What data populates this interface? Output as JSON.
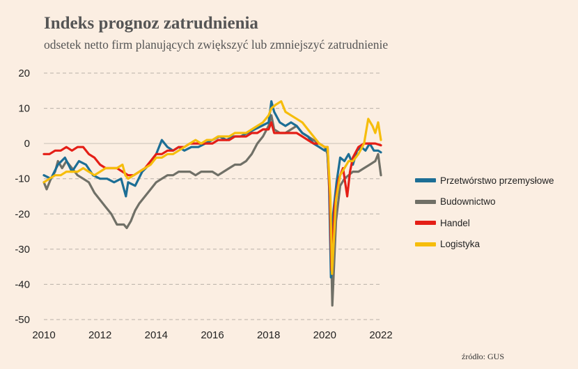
{
  "header": {
    "title": "Indeks prognoz zatrudnienia",
    "subtitle": "odsetek netto firm planujących zwiększyć lub zmniejszyć zatrudnienie"
  },
  "footer": {
    "source": "źródło: GUS"
  },
  "chart_data": {
    "type": "line",
    "title": "Indeks prognoz zatrudnienia",
    "subtitle": "odsetek netto firm planujących zwiększyć lub zmniejszyć zatrudnienie",
    "xlabel": "",
    "ylabel": "",
    "xlim": [
      2010,
      2022
    ],
    "ylim": [
      -50,
      20
    ],
    "x_ticks": [
      "2010",
      "2012",
      "2014",
      "2016",
      "2018",
      "2020",
      "2022"
    ],
    "y_ticks": [
      "20",
      "10",
      "0",
      "-10",
      "-20",
      "-30",
      "-40",
      "-50"
    ],
    "grid": "horizontal dashed",
    "legend_position": "right",
    "series": [
      {
        "name": "Przetwórstwo przemysłowe",
        "color": "#1c6e95",
        "points": [
          [
            2010.0,
            -9
          ],
          [
            2010.25,
            -10
          ],
          [
            2010.5,
            -6
          ],
          [
            2010.75,
            -4
          ],
          [
            2011.0,
            -8
          ],
          [
            2011.25,
            -5
          ],
          [
            2011.5,
            -6
          ],
          [
            2011.75,
            -9
          ],
          [
            2012.0,
            -10
          ],
          [
            2012.25,
            -10
          ],
          [
            2012.5,
            -11
          ],
          [
            2012.75,
            -10
          ],
          [
            2012.92,
            -15
          ],
          [
            2013.0,
            -11
          ],
          [
            2013.25,
            -12
          ],
          [
            2013.5,
            -8
          ],
          [
            2013.75,
            -6
          ],
          [
            2014.0,
            -3
          ],
          [
            2014.2,
            1
          ],
          [
            2014.4,
            -1
          ],
          [
            2014.6,
            -2
          ],
          [
            2014.8,
            -1
          ],
          [
            2015.0,
            -2
          ],
          [
            2015.25,
            -1
          ],
          [
            2015.5,
            -1
          ],
          [
            2015.75,
            0
          ],
          [
            2016.0,
            1
          ],
          [
            2016.25,
            2
          ],
          [
            2016.5,
            1
          ],
          [
            2016.75,
            2
          ],
          [
            2017.0,
            2
          ],
          [
            2017.25,
            3
          ],
          [
            2017.5,
            4
          ],
          [
            2017.75,
            5
          ],
          [
            2018.0,
            6
          ],
          [
            2018.1,
            12
          ],
          [
            2018.2,
            9
          ],
          [
            2018.4,
            6
          ],
          [
            2018.6,
            5
          ],
          [
            2018.8,
            6
          ],
          [
            2019.0,
            5
          ],
          [
            2019.2,
            3
          ],
          [
            2019.4,
            2
          ],
          [
            2019.6,
            0
          ],
          [
            2019.8,
            -1
          ],
          [
            2020.0,
            -2
          ],
          [
            2020.08,
            -1
          ],
          [
            2020.15,
            -10
          ],
          [
            2020.22,
            -38
          ],
          [
            2020.3,
            -20
          ],
          [
            2020.42,
            -11
          ],
          [
            2020.55,
            -4
          ],
          [
            2020.7,
            -5
          ],
          [
            2020.85,
            -3
          ],
          [
            2021.0,
            -6
          ],
          [
            2021.15,
            -2
          ],
          [
            2021.3,
            -1
          ],
          [
            2021.45,
            -2
          ],
          [
            2021.6,
            0
          ],
          [
            2021.75,
            -2
          ],
          [
            2021.9,
            -2
          ],
          [
            2022.0,
            -2.5
          ]
        ]
      },
      {
        "name": "Budownictwo",
        "color": "#707067",
        "points": [
          [
            2010.0,
            -11
          ],
          [
            2010.1,
            -13
          ],
          [
            2010.25,
            -10
          ],
          [
            2010.4,
            -8
          ],
          [
            2010.5,
            -5
          ],
          [
            2010.65,
            -7
          ],
          [
            2010.8,
            -5
          ],
          [
            2011.0,
            -7
          ],
          [
            2011.2,
            -9
          ],
          [
            2011.4,
            -10
          ],
          [
            2011.6,
            -11
          ],
          [
            2011.8,
            -14
          ],
          [
            2012.0,
            -16
          ],
          [
            2012.2,
            -18
          ],
          [
            2012.4,
            -20
          ],
          [
            2012.6,
            -23
          ],
          [
            2012.85,
            -23
          ],
          [
            2012.95,
            -24
          ],
          [
            2013.1,
            -22
          ],
          [
            2013.25,
            -19
          ],
          [
            2013.4,
            -17
          ],
          [
            2013.6,
            -15
          ],
          [
            2013.8,
            -13
          ],
          [
            2014.0,
            -11
          ],
          [
            2014.2,
            -10
          ],
          [
            2014.4,
            -9
          ],
          [
            2014.6,
            -9
          ],
          [
            2014.8,
            -8
          ],
          [
            2015.0,
            -8
          ],
          [
            2015.2,
            -8
          ],
          [
            2015.4,
            -9
          ],
          [
            2015.6,
            -8
          ],
          [
            2015.8,
            -8
          ],
          [
            2016.0,
            -8
          ],
          [
            2016.2,
            -9
          ],
          [
            2016.4,
            -8
          ],
          [
            2016.6,
            -7
          ],
          [
            2016.8,
            -6
          ],
          [
            2017.0,
            -6
          ],
          [
            2017.2,
            -5
          ],
          [
            2017.4,
            -3
          ],
          [
            2017.6,
            0
          ],
          [
            2017.8,
            2
          ],
          [
            2018.0,
            5
          ],
          [
            2018.1,
            8
          ],
          [
            2018.2,
            4
          ],
          [
            2018.4,
            3
          ],
          [
            2018.6,
            3
          ],
          [
            2018.8,
            4
          ],
          [
            2019.0,
            5
          ],
          [
            2019.2,
            3
          ],
          [
            2019.4,
            2
          ],
          [
            2019.6,
            1
          ],
          [
            2019.8,
            0
          ],
          [
            2020.0,
            -1
          ],
          [
            2020.1,
            -3
          ],
          [
            2020.2,
            -20
          ],
          [
            2020.27,
            -46
          ],
          [
            2020.4,
            -22
          ],
          [
            2020.55,
            -12
          ],
          [
            2020.7,
            -10
          ],
          [
            2020.85,
            -9
          ],
          [
            2021.0,
            -8
          ],
          [
            2021.2,
            -8
          ],
          [
            2021.4,
            -7
          ],
          [
            2021.6,
            -6
          ],
          [
            2021.8,
            -5
          ],
          [
            2021.9,
            -3
          ],
          [
            2022.0,
            -9
          ]
        ]
      },
      {
        "name": "Handel",
        "color": "#e41e16",
        "points": [
          [
            2010.0,
            -3
          ],
          [
            2010.2,
            -3
          ],
          [
            2010.4,
            -2
          ],
          [
            2010.6,
            -2
          ],
          [
            2010.8,
            -1
          ],
          [
            2011.0,
            -2
          ],
          [
            2011.2,
            -1
          ],
          [
            2011.4,
            -1
          ],
          [
            2011.6,
            -3
          ],
          [
            2011.8,
            -4
          ],
          [
            2012.0,
            -6
          ],
          [
            2012.2,
            -7
          ],
          [
            2012.4,
            -7
          ],
          [
            2012.6,
            -7
          ],
          [
            2012.8,
            -8
          ],
          [
            2013.0,
            -9
          ],
          [
            2013.2,
            -9
          ],
          [
            2013.4,
            -8
          ],
          [
            2013.6,
            -7
          ],
          [
            2013.8,
            -5
          ],
          [
            2014.0,
            -3
          ],
          [
            2014.2,
            -3
          ],
          [
            2014.4,
            -2
          ],
          [
            2014.6,
            -2
          ],
          [
            2014.8,
            -1
          ],
          [
            2015.0,
            -1
          ],
          [
            2015.2,
            0
          ],
          [
            2015.4,
            0
          ],
          [
            2015.6,
            0
          ],
          [
            2015.8,
            0
          ],
          [
            2016.0,
            0
          ],
          [
            2016.2,
            1
          ],
          [
            2016.4,
            1
          ],
          [
            2016.6,
            1
          ],
          [
            2016.8,
            2
          ],
          [
            2017.0,
            2
          ],
          [
            2017.2,
            2
          ],
          [
            2017.4,
            3
          ],
          [
            2017.6,
            3
          ],
          [
            2017.8,
            4
          ],
          [
            2018.0,
            4
          ],
          [
            2018.1,
            6
          ],
          [
            2018.2,
            3
          ],
          [
            2018.4,
            3
          ],
          [
            2018.6,
            3
          ],
          [
            2018.8,
            3
          ],
          [
            2019.0,
            3
          ],
          [
            2019.2,
            2
          ],
          [
            2019.4,
            1
          ],
          [
            2019.6,
            0
          ],
          [
            2019.8,
            0
          ],
          [
            2020.0,
            -1
          ],
          [
            2020.1,
            -1
          ],
          [
            2020.18,
            -15
          ],
          [
            2020.24,
            -36
          ],
          [
            2020.35,
            -18
          ],
          [
            2020.5,
            -10
          ],
          [
            2020.65,
            -7
          ],
          [
            2020.8,
            -15
          ],
          [
            2020.9,
            -8
          ],
          [
            2021.0,
            -4
          ],
          [
            2021.2,
            -1
          ],
          [
            2021.4,
            0
          ],
          [
            2021.6,
            0
          ],
          [
            2021.8,
            0
          ],
          [
            2022.0,
            -0.5
          ]
        ]
      },
      {
        "name": "Logistyka",
        "color": "#f6bd0b",
        "points": [
          [
            2010.0,
            -11
          ],
          [
            2010.2,
            -10
          ],
          [
            2010.4,
            -9
          ],
          [
            2010.6,
            -9
          ],
          [
            2010.8,
            -8
          ],
          [
            2011.0,
            -8
          ],
          [
            2011.2,
            -8
          ],
          [
            2011.4,
            -7
          ],
          [
            2011.6,
            -8
          ],
          [
            2011.8,
            -9
          ],
          [
            2012.0,
            -8
          ],
          [
            2012.2,
            -7
          ],
          [
            2012.4,
            -7
          ],
          [
            2012.6,
            -7
          ],
          [
            2012.8,
            -6
          ],
          [
            2012.9,
            -9
          ],
          [
            2013.0,
            -10
          ],
          [
            2013.2,
            -9
          ],
          [
            2013.4,
            -8
          ],
          [
            2013.6,
            -7
          ],
          [
            2013.8,
            -6
          ],
          [
            2014.0,
            -4
          ],
          [
            2014.2,
            -4
          ],
          [
            2014.4,
            -3
          ],
          [
            2014.6,
            -3
          ],
          [
            2014.8,
            -2
          ],
          [
            2015.0,
            -1
          ],
          [
            2015.2,
            0
          ],
          [
            2015.4,
            1
          ],
          [
            2015.6,
            0
          ],
          [
            2015.8,
            1
          ],
          [
            2016.0,
            1
          ],
          [
            2016.2,
            2
          ],
          [
            2016.4,
            2
          ],
          [
            2016.6,
            2
          ],
          [
            2016.8,
            3
          ],
          [
            2017.0,
            3
          ],
          [
            2017.2,
            3
          ],
          [
            2017.4,
            4
          ],
          [
            2017.6,
            5
          ],
          [
            2017.8,
            6
          ],
          [
            2018.0,
            8
          ],
          [
            2018.1,
            10
          ],
          [
            2018.25,
            11
          ],
          [
            2018.45,
            12
          ],
          [
            2018.6,
            9
          ],
          [
            2018.8,
            8
          ],
          [
            2019.0,
            7
          ],
          [
            2019.2,
            6
          ],
          [
            2019.4,
            4
          ],
          [
            2019.6,
            2
          ],
          [
            2019.8,
            0
          ],
          [
            2020.0,
            -1
          ],
          [
            2020.1,
            -1
          ],
          [
            2020.2,
            -15
          ],
          [
            2020.26,
            -37
          ],
          [
            2020.4,
            -16
          ],
          [
            2020.55,
            -9
          ],
          [
            2020.7,
            -7
          ],
          [
            2020.85,
            -5
          ],
          [
            2021.0,
            -5
          ],
          [
            2021.2,
            -3
          ],
          [
            2021.4,
            0
          ],
          [
            2021.55,
            7
          ],
          [
            2021.7,
            5
          ],
          [
            2021.8,
            3
          ],
          [
            2021.9,
            6
          ],
          [
            2022.0,
            1
          ]
        ]
      }
    ]
  }
}
